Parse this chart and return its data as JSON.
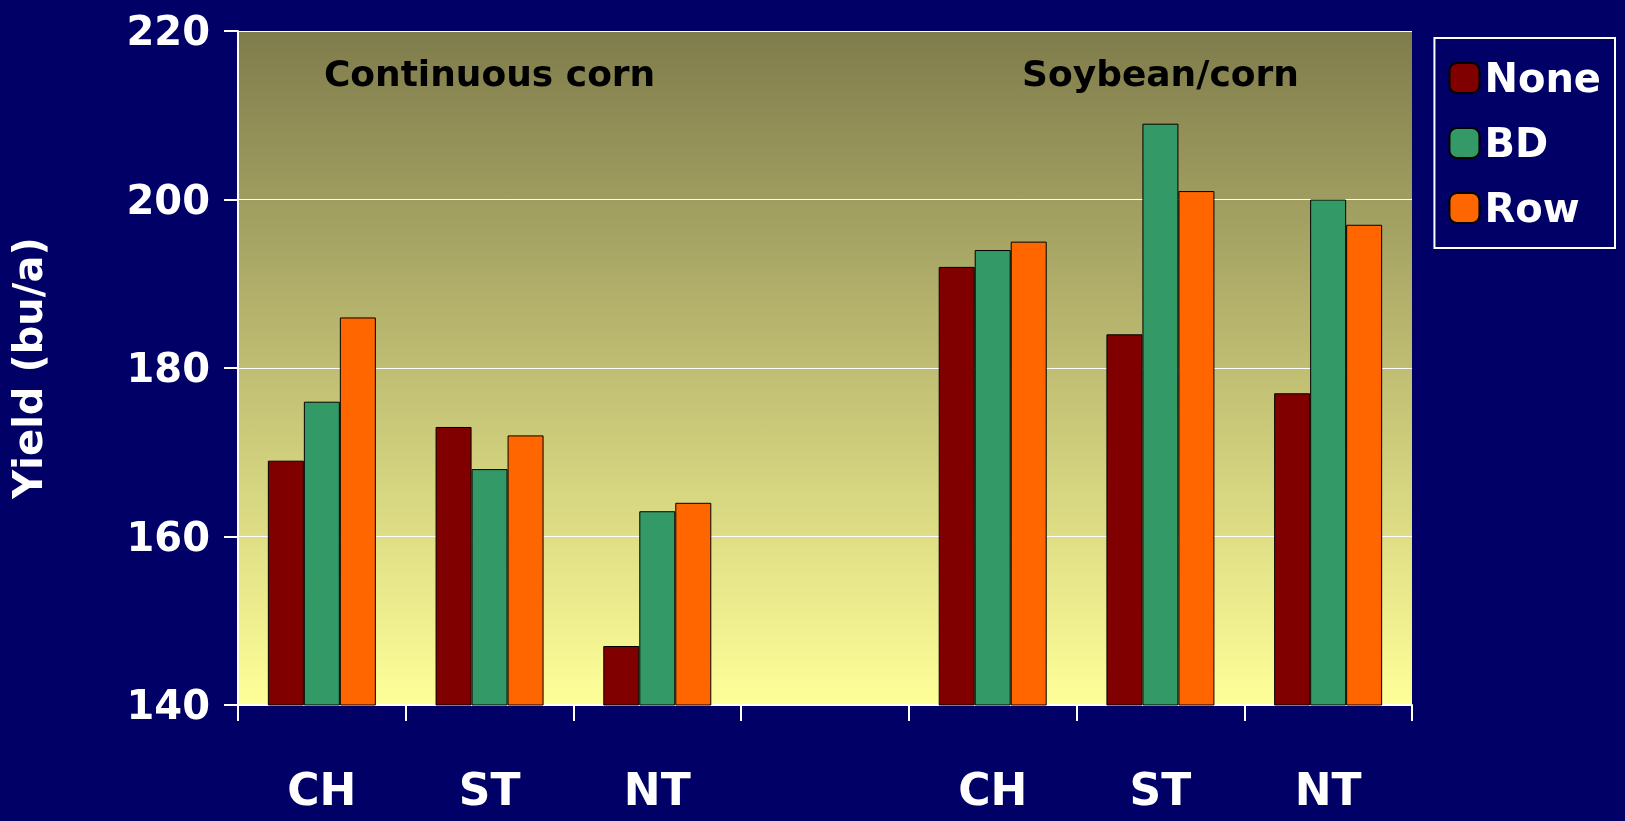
{
  "chart_data": {
    "type": "bar",
    "ylabel": "Yield (bu/a)",
    "categories": [
      "CH",
      "ST",
      "NT",
      null,
      "CH",
      "ST",
      "NT"
    ],
    "series": [
      {
        "name": "None",
        "color": "#800000",
        "values": [
          169,
          173,
          147,
          null,
          192,
          184,
          177
        ]
      },
      {
        "name": "BD",
        "color": "#339966",
        "values": [
          176,
          168,
          163,
          null,
          194,
          209,
          200
        ]
      },
      {
        "name": "Row",
        "color": "#ff6600",
        "values": [
          186,
          172,
          164,
          null,
          195,
          201,
          197
        ]
      }
    ],
    "ylim": [
      140,
      220
    ],
    "yticks": [
      140,
      160,
      180,
      200,
      220
    ],
    "grid": "y",
    "legend": "top right",
    "annotations": [
      "Continuous corn",
      "Soybean/corn"
    ]
  }
}
